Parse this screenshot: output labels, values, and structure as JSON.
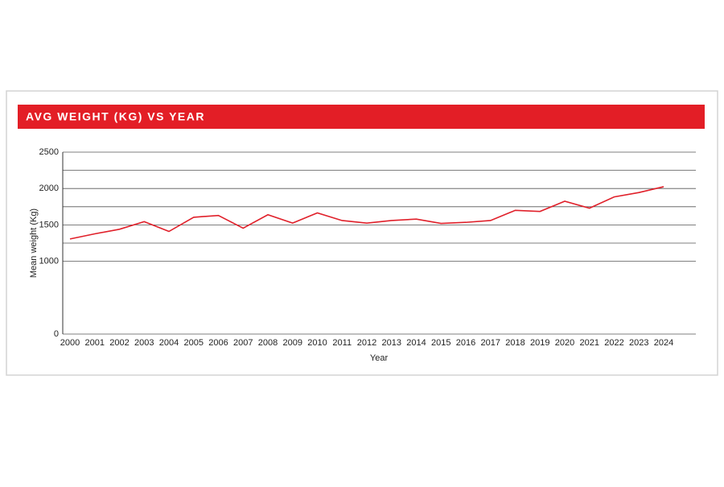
{
  "chart_data": {
    "type": "line",
    "title": "AVG WEIGHT (KG) VS YEAR",
    "x_label": "Year",
    "y_label": "Mean weight (Kg)",
    "categories": [
      "2000",
      "2001",
      "2002",
      "2003",
      "2004",
      "2005",
      "2006",
      "2007",
      "2008",
      "2009",
      "2010",
      "2011",
      "2012",
      "2013",
      "2014",
      "2015",
      "2016",
      "2017",
      "2018",
      "2019",
      "2020",
      "2021",
      "2022",
      "2023",
      "2024"
    ],
    "series": [
      {
        "name": "Mean weight",
        "color": "#e0202a",
        "values": [
          1307,
          1377,
          1440,
          1545,
          1410,
          1605,
          1630,
          1455,
          1640,
          1525,
          1665,
          1560,
          1525,
          1560,
          1580,
          1520,
          1535,
          1560,
          1700,
          1685,
          1825,
          1730,
          1885,
          1945,
          2025
        ]
      }
    ],
    "ylim": [
      0,
      2500
    ],
    "yticks": [
      0,
      1000,
      1500,
      2000,
      2500
    ],
    "minor_yticks": [
      1250,
      1750,
      2250
    ],
    "grid": true,
    "header_color": "#e31e26"
  }
}
